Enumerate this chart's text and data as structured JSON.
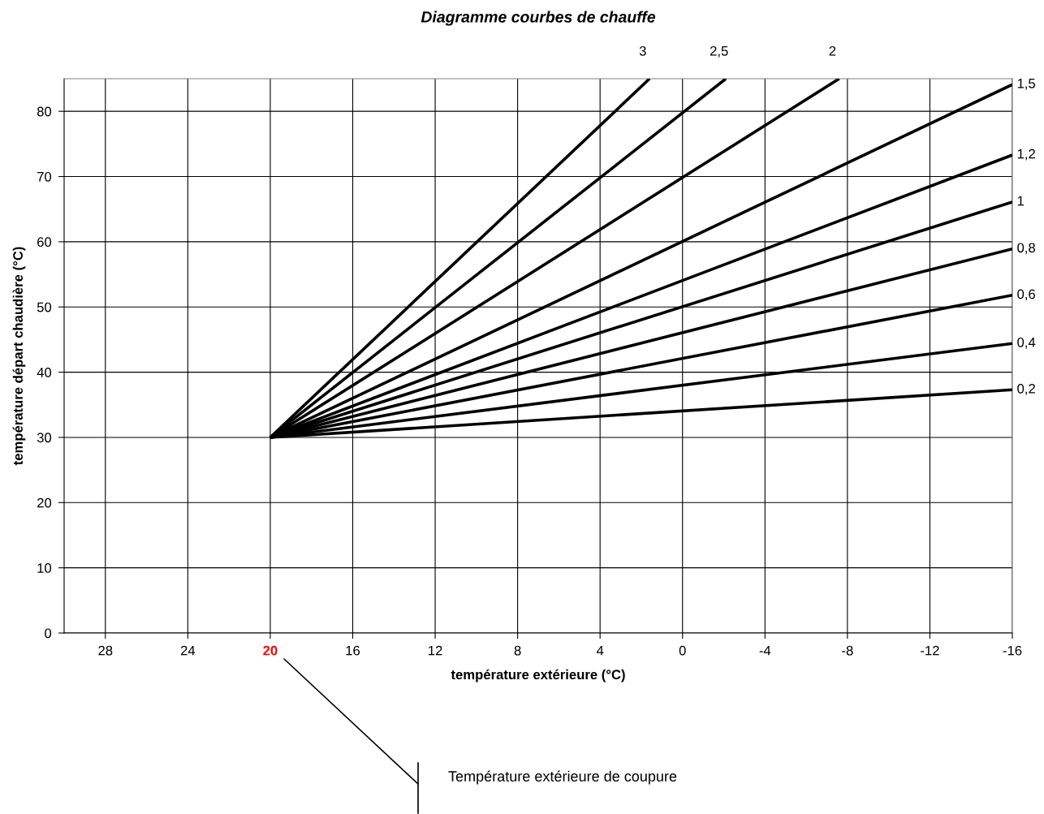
{
  "chart_data": {
    "type": "line",
    "title": "Diagramme courbes de chauffe",
    "xlabel": "température extérieure (°C)",
    "ylabel": "température départ chaudière (°C)",
    "xlim": [
      30,
      -16
    ],
    "ylim": [
      0,
      85
    ],
    "xticks": [
      28,
      24,
      20,
      16,
      12,
      8,
      4,
      0,
      -4,
      -8,
      -12,
      -16
    ],
    "yticks": [
      0,
      10,
      20,
      30,
      40,
      50,
      60,
      70,
      80
    ],
    "grid": true,
    "legend": false,
    "marker": "none",
    "line_style": "solid",
    "annotations": [
      "Température extérieure de coupure"
    ],
    "series": [
      {
        "name": "3",
        "color": "#000000",
        "x": [
          20,
          1.6
        ],
        "values": [
          30,
          85
        ]
      },
      {
        "name": "2,5",
        "color": "#000000",
        "x": [
          20,
          -2.1
        ],
        "values": [
          30,
          85
        ]
      },
      {
        "name": "2",
        "color": "#000000",
        "x": [
          20,
          -7.6
        ],
        "values": [
          30,
          85
        ]
      },
      {
        "name": "1,5",
        "color": "#000000",
        "x": [
          20,
          -16
        ],
        "values": [
          30,
          84.1
        ]
      },
      {
        "name": "1,2",
        "color": "#000000",
        "x": [
          20,
          -16
        ],
        "values": [
          30,
          73.3
        ]
      },
      {
        "name": "1",
        "color": "#000000",
        "x": [
          20,
          -16
        ],
        "values": [
          30,
          66.1
        ]
      },
      {
        "name": "0,8",
        "color": "#000000",
        "x": [
          20,
          -16
        ],
        "values": [
          30,
          58.9
        ]
      },
      {
        "name": "0,6",
        "color": "#000000",
        "x": [
          20,
          -16
        ],
        "values": [
          30,
          51.8
        ]
      },
      {
        "name": "0,4",
        "color": "#000000",
        "x": [
          20,
          -16
        ],
        "values": [
          30,
          44.4
        ]
      },
      {
        "name": "0,2",
        "color": "#000000",
        "x": [
          20,
          -16
        ],
        "values": [
          30,
          37.3
        ]
      }
    ]
  }
}
